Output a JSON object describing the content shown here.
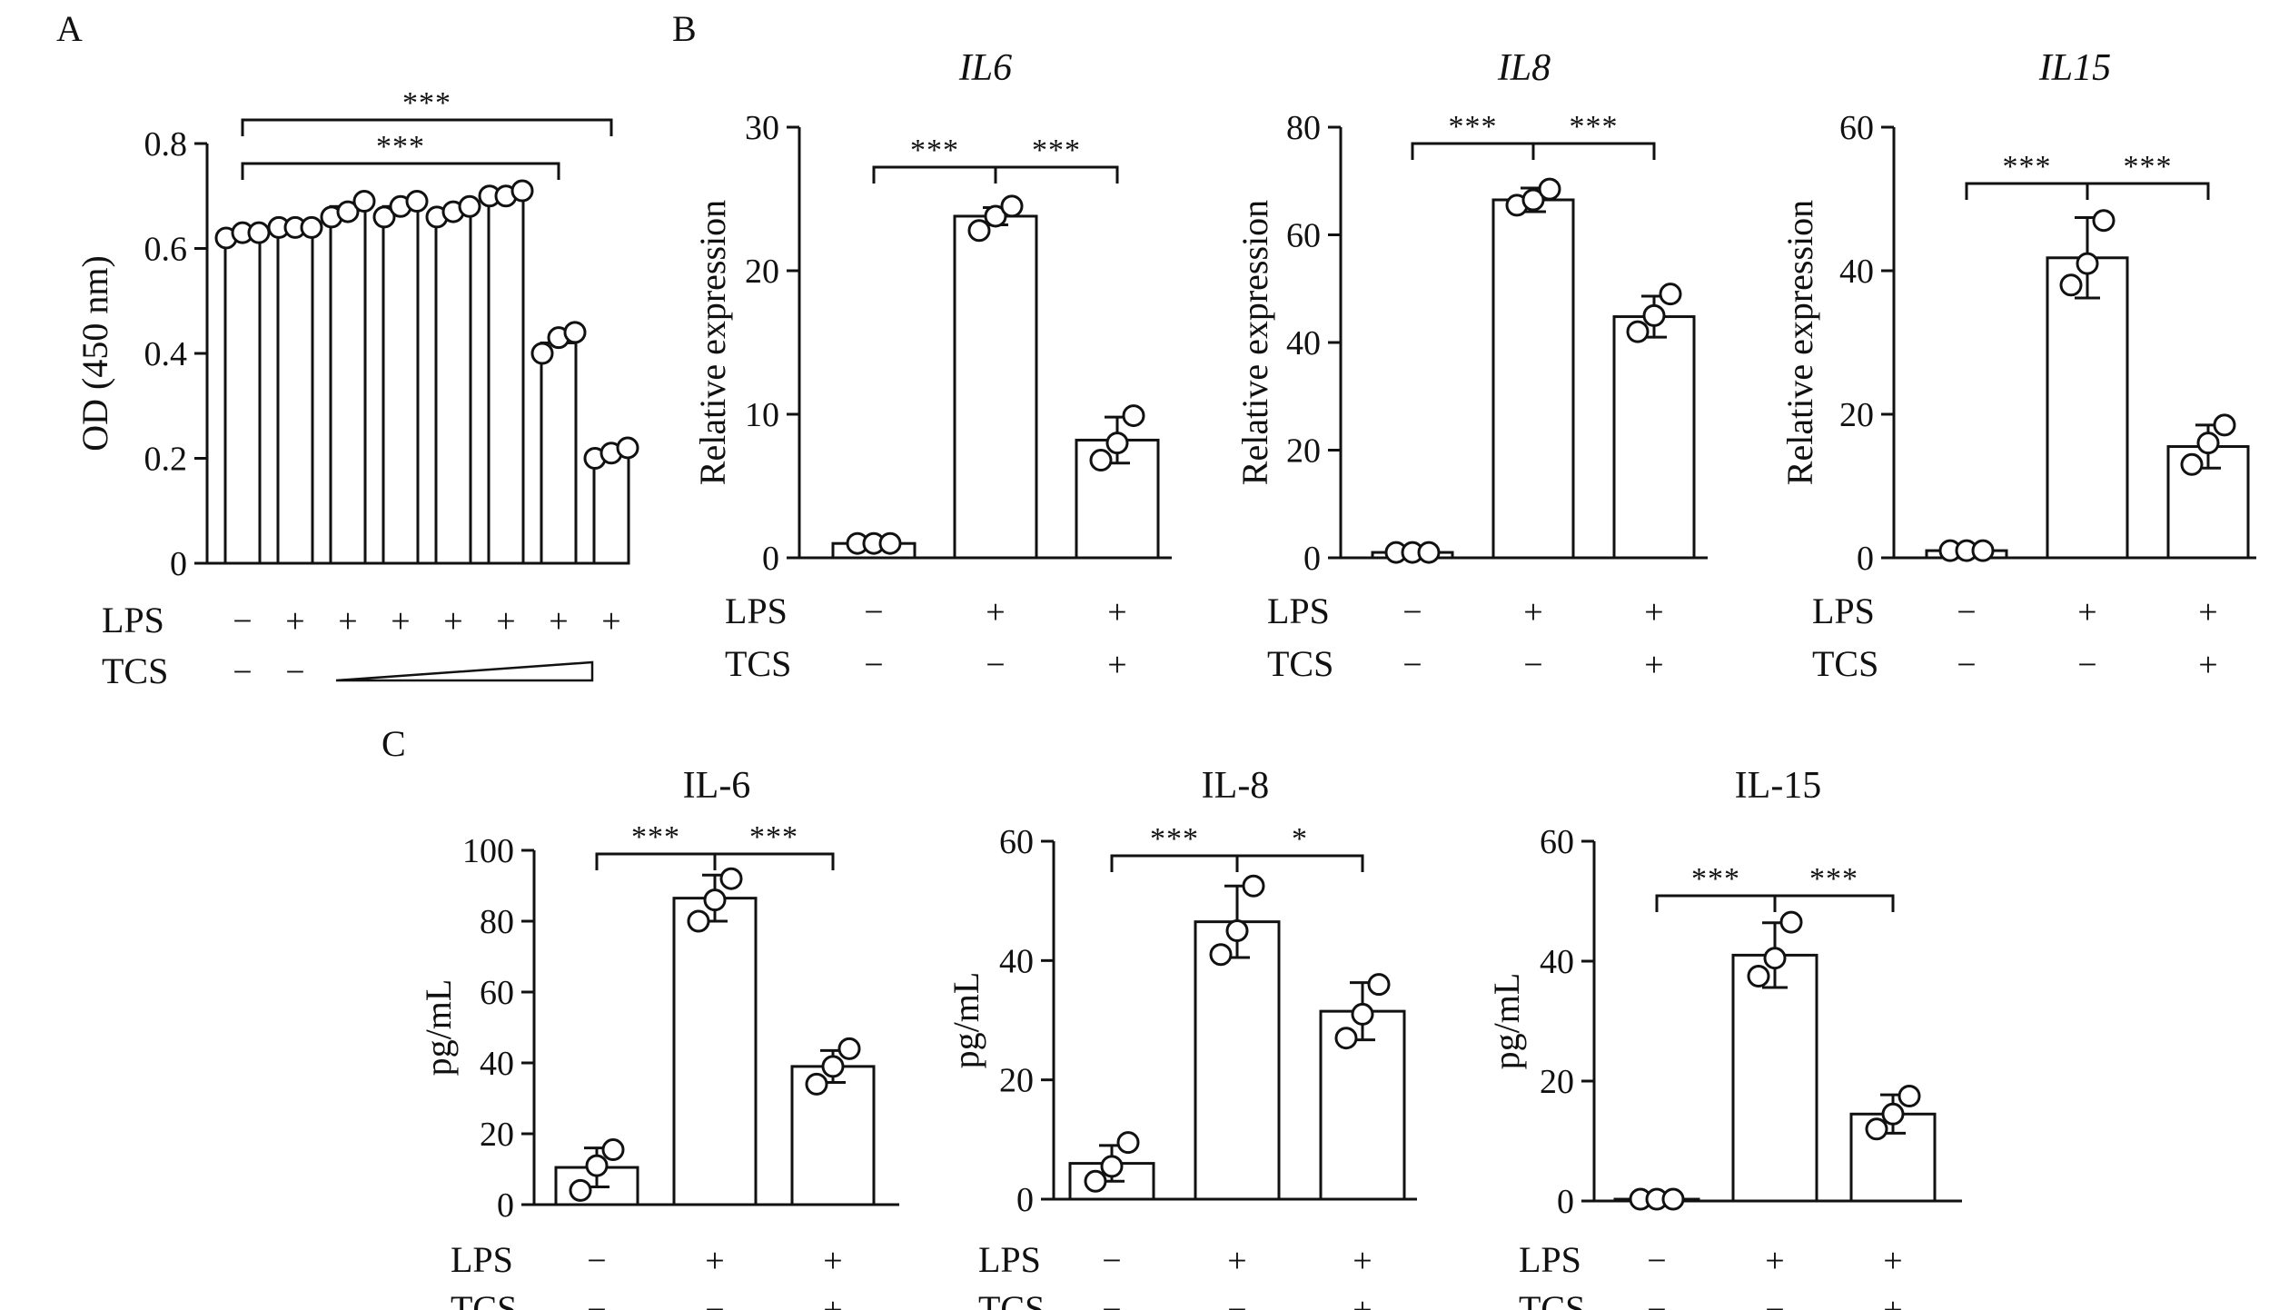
{
  "figure": {
    "panel_letters": {
      "A": "A",
      "B": "B",
      "C": "C"
    },
    "labels": {
      "lps": "LPS",
      "tcs": "TCS"
    }
  },
  "chart_data": [
    {
      "id": "A",
      "panel": "A",
      "type": "bar",
      "title": "",
      "title_italic": false,
      "ylabel": "OD (450 nm)",
      "ylim": [
        0,
        0.8
      ],
      "yticks": [
        "0",
        "0.2",
        "0.4",
        "0.6",
        "0.8"
      ],
      "yticks_values": [
        0,
        0.2,
        0.4,
        0.6,
        0.8
      ],
      "values": [
        0.63,
        0.64,
        0.68,
        0.68,
        0.67,
        0.7,
        0.42,
        0.21
      ],
      "errors": [
        0,
        0,
        0,
        0,
        0,
        0,
        0,
        0
      ],
      "points": [
        [
          0.62,
          0.63,
          0.63
        ],
        [
          0.64,
          0.64,
          0.64
        ],
        [
          0.66,
          0.67,
          0.69
        ],
        [
          0.66,
          0.68,
          0.69
        ],
        [
          0.66,
          0.67,
          0.68
        ],
        [
          0.7,
          0.7,
          0.71
        ],
        [
          0.4,
          0.43,
          0.44
        ],
        [
          0.2,
          0.21,
          0.22
        ]
      ],
      "lps": [
        "−",
        "+",
        "+",
        "+",
        "+",
        "+",
        "+",
        "+"
      ],
      "tcs": [
        "−",
        "−"
      ],
      "tcs_gradient": "increasing concentration",
      "significance": [
        {
          "from": 0,
          "to": 7,
          "label": "***"
        },
        {
          "from": 0,
          "to": 6,
          "label": "***"
        }
      ]
    },
    {
      "id": "B1",
      "panel": "B",
      "type": "bar",
      "title": "IL6",
      "title_italic": true,
      "ylabel": "Relative expression",
      "ylim": [
        0,
        30
      ],
      "yticks": [
        "0",
        "10",
        "20",
        "30"
      ],
      "yticks_values": [
        0,
        10,
        20,
        30
      ],
      "values": [
        1.0,
        23.8,
        8.2
      ],
      "errors": [
        0,
        0.6,
        1.6
      ],
      "points": [
        [
          1.0,
          1.0,
          1.0
        ],
        [
          22.8,
          23.8,
          24.5
        ],
        [
          6.8,
          8.0,
          9.9
        ]
      ],
      "lps": [
        "−",
        "+",
        "+"
      ],
      "tcs": [
        "−",
        "−",
        "+"
      ],
      "significance": [
        {
          "from": 0,
          "to": 1,
          "label": "***"
        },
        {
          "from": 1,
          "to": 2,
          "label": "***"
        }
      ]
    },
    {
      "id": "B2",
      "panel": "B",
      "type": "bar",
      "title": "IL8",
      "title_italic": true,
      "ylabel": "Relative expression",
      "ylim": [
        0,
        80
      ],
      "yticks": [
        "0",
        "20",
        "40",
        "60",
        "80"
      ],
      "yticks_values": [
        0,
        20,
        40,
        60,
        80
      ],
      "values": [
        1.0,
        66.5,
        44.8
      ],
      "errors": [
        0,
        2.2,
        3.8
      ],
      "points": [
        [
          1.0,
          1.0,
          1.0
        ],
        [
          65.5,
          66.5,
          68.5
        ],
        [
          42.0,
          45.0,
          49.0
        ]
      ],
      "lps": [
        "−",
        "+",
        "+"
      ],
      "tcs": [
        "−",
        "−",
        "+"
      ],
      "significance": [
        {
          "from": 0,
          "to": 1,
          "label": "***"
        },
        {
          "from": 1,
          "to": 2,
          "label": "***"
        }
      ]
    },
    {
      "id": "B3",
      "panel": "B",
      "type": "bar",
      "title": "IL15",
      "title_italic": true,
      "ylabel": "Relative expression",
      "ylim": [
        0,
        60
      ],
      "yticks": [
        "0",
        "20",
        "40",
        "60"
      ],
      "yticks_values": [
        0,
        20,
        40,
        60
      ],
      "values": [
        1.0,
        41.8,
        15.5
      ],
      "errors": [
        0,
        5.6,
        3.0
      ],
      "points": [
        [
          1.0,
          1.0,
          1.0
        ],
        [
          38.0,
          41.0,
          47.0
        ],
        [
          13.0,
          16.0,
          18.5
        ]
      ],
      "lps": [
        "−",
        "+",
        "+"
      ],
      "tcs": [
        "−",
        "−",
        "+"
      ],
      "significance": [
        {
          "from": 0,
          "to": 1,
          "label": "***"
        },
        {
          "from": 1,
          "to": 2,
          "label": "***"
        }
      ]
    },
    {
      "id": "C1",
      "panel": "C",
      "type": "bar",
      "title": "IL-6",
      "title_italic": false,
      "ylabel": "pg/mL",
      "ylim": [
        0,
        100
      ],
      "yticks": [
        "0",
        "20",
        "40",
        "60",
        "80",
        "100"
      ],
      "yticks_values": [
        0,
        20,
        40,
        60,
        80,
        100
      ],
      "values": [
        10.5,
        86.5,
        39.0
      ],
      "errors": [
        5.5,
        6.5,
        4.5
      ],
      "points": [
        [
          4.0,
          11.0,
          15.5
        ],
        [
          80.0,
          86.0,
          92.0
        ],
        [
          34.0,
          39.0,
          44.0
        ]
      ],
      "lps": [
        "−",
        "+",
        "+"
      ],
      "tcs": [
        "−",
        "−",
        "+"
      ],
      "significance": [
        {
          "from": 0,
          "to": 1,
          "label": "***"
        },
        {
          "from": 1,
          "to": 2,
          "label": "***"
        }
      ]
    },
    {
      "id": "C2",
      "panel": "C",
      "type": "bar",
      "title": "IL-8",
      "title_italic": false,
      "ylabel": "pg/mL",
      "ylim": [
        0,
        60
      ],
      "yticks": [
        "0",
        "20",
        "40",
        "60"
      ],
      "yticks_values": [
        0,
        20,
        40,
        60
      ],
      "values": [
        6.0,
        46.5,
        31.5
      ],
      "errors": [
        3.0,
        6.0,
        4.8
      ],
      "points": [
        [
          3.0,
          5.5,
          9.5
        ],
        [
          41.0,
          45.0,
          52.5
        ],
        [
          27.0,
          31.0,
          36.0
        ]
      ],
      "lps": [
        "−",
        "+",
        "+"
      ],
      "tcs": [
        "−",
        "−",
        "+"
      ],
      "significance": [
        {
          "from": 0,
          "to": 1,
          "label": "***"
        },
        {
          "from": 1,
          "to": 2,
          "label": "*"
        }
      ]
    },
    {
      "id": "C3",
      "panel": "C",
      "type": "bar",
      "title": "IL-15",
      "title_italic": false,
      "ylabel": "pg/mL",
      "ylim": [
        0,
        60
      ],
      "yticks": [
        "0",
        "20",
        "40",
        "60"
      ],
      "yticks_values": [
        0,
        20,
        40,
        60
      ],
      "values": [
        0.3,
        41.0,
        14.5
      ],
      "errors": [
        0,
        5.4,
        3.2
      ],
      "points": [
        [
          0.3,
          0.3,
          0.3
        ],
        [
          37.5,
          40.5,
          46.5
        ],
        [
          12.0,
          14.5,
          17.5
        ]
      ],
      "lps": [
        "−",
        "+",
        "+"
      ],
      "tcs": [
        "−",
        "−",
        "+"
      ],
      "significance": [
        {
          "from": 0,
          "to": 1,
          "label": "***"
        },
        {
          "from": 1,
          "to": 2,
          "label": "***"
        }
      ]
    }
  ]
}
